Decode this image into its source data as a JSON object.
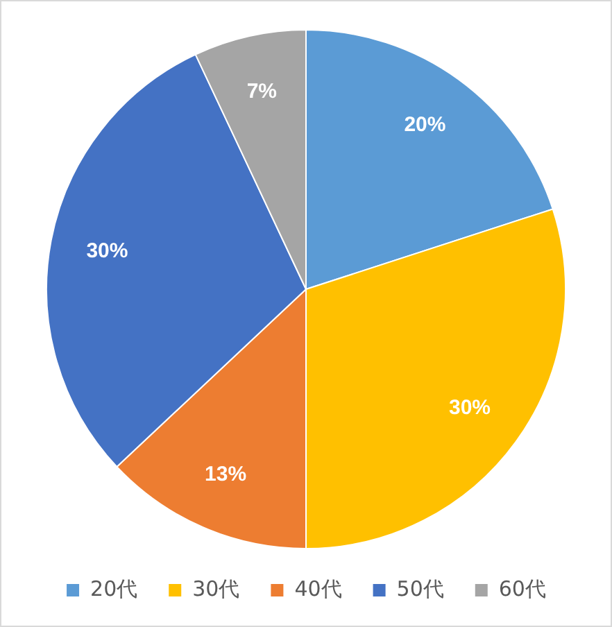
{
  "chart_data": {
    "type": "pie",
    "categories": [
      "20代",
      "30代",
      "40代",
      "50代",
      "60代"
    ],
    "values": [
      20,
      30,
      13,
      30,
      7
    ],
    "colors": [
      "#5b9bd5",
      "#ffc000",
      "#ed7d31",
      "#4472c4",
      "#a5a5a5"
    ],
    "value_labels": [
      "20%",
      "30%",
      "13%",
      "30%",
      "7%"
    ],
    "legend": "bottom"
  }
}
